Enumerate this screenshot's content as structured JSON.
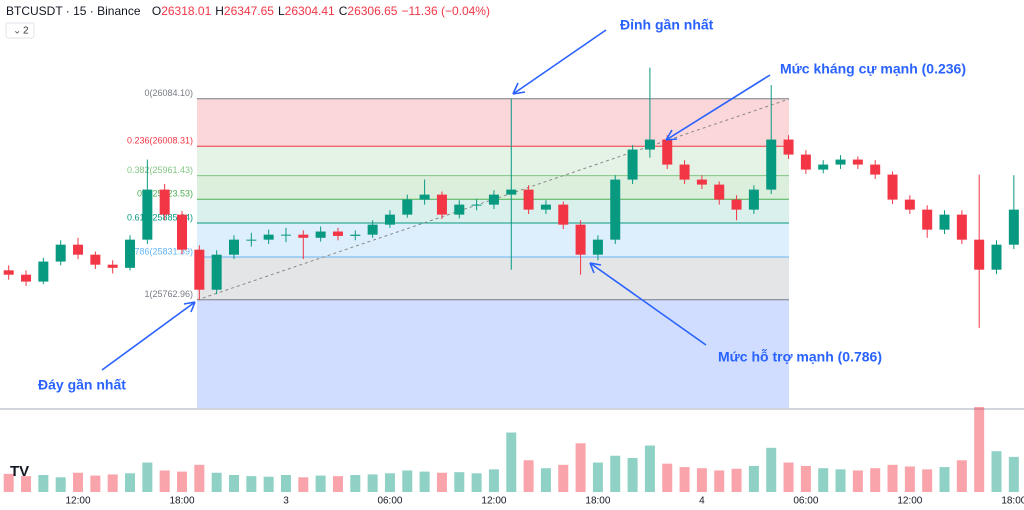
{
  "chart_data": {
    "type": "candlestick",
    "header": {
      "symbol": "BTCUSDT · 15 · Binance",
      "ohlc": [
        {
          "k": "O",
          "v": "26318.01"
        },
        {
          "k": "H",
          "v": "26347.65"
        },
        {
          "k": "L",
          "v": "26304.41"
        },
        {
          "k": "C",
          "v": "26306.65"
        }
      ],
      "change": "−11.36 (−0.04%)",
      "toggle": "2"
    },
    "categories": [
      null,
      null,
      null,
      null,
      "12:00",
      null,
      null,
      null,
      null,
      null,
      "18:00",
      null,
      null,
      null,
      null,
      null,
      "3",
      null,
      null,
      null,
      null,
      null,
      "06:00",
      null,
      null,
      null,
      null,
      null,
      "12:00",
      null,
      null,
      null,
      null,
      null,
      "18:00",
      null,
      null,
      null,
      null,
      null,
      "4",
      null,
      null,
      null,
      null,
      null,
      "06:00",
      null,
      null,
      null,
      null,
      null,
      "12:00",
      null,
      null,
      null,
      null,
      null,
      "18:00"
    ],
    "open": [
      25810,
      25803,
      25792,
      25824,
      25851,
      25835,
      25819,
      25814,
      25859,
      25939,
      25899,
      25843,
      25779,
      25835,
      25859,
      25859,
      25867,
      25867,
      25862,
      25872,
      25865,
      25867,
      25883,
      25899,
      25923,
      25931,
      25899,
      25915,
      25915,
      25931,
      25939,
      25907,
      25915,
      25883,
      25835,
      25859,
      25955,
      26003,
      26019,
      25979,
      25955,
      25947,
      25923,
      25907,
      25939,
      26019,
      25995,
      25971,
      25979,
      25987,
      25979,
      25963,
      25923,
      25907,
      25875,
      25899,
      25859,
      25811,
      25851
    ],
    "high": [
      25818,
      25810,
      25830,
      25858,
      25862,
      25840,
      25826,
      25866,
      25987,
      25948,
      25905,
      25850,
      25842,
      25866,
      25870,
      25875,
      25878,
      25874,
      25880,
      25878,
      25874,
      25890,
      25906,
      25931,
      25955,
      25936,
      25922,
      25924,
      25938,
      26084,
      25946,
      25922,
      25920,
      25890,
      25866,
      25962,
      26010,
      26134,
      26026,
      25986,
      25962,
      25952,
      25930,
      25946,
      26106,
      26026,
      26002,
      25986,
      25994,
      25992,
      25986,
      25968,
      25930,
      25914,
      25906,
      25906,
      25963,
      25858,
      25962
    ],
    "low": [
      25795,
      25785,
      25788,
      25818,
      25828,
      25812,
      25805,
      25810,
      25852,
      25890,
      25836,
      25763,
      25772,
      25828,
      25848,
      25852,
      25855,
      25828,
      25856,
      25858,
      25858,
      25862,
      25878,
      25894,
      25915,
      25892,
      25893,
      25906,
      25908,
      25811,
      25900,
      25900,
      25876,
      25803,
      25826,
      25852,
      25948,
      25990,
      25972,
      25948,
      25940,
      25915,
      25890,
      25900,
      25932,
      25988,
      25964,
      25965,
      25972,
      25972,
      25956,
      25916,
      25900,
      25862,
      25868,
      25852,
      25718,
      25804,
      25844
    ],
    "close": [
      25803,
      25792,
      25824,
      25851,
      25835,
      25819,
      25814,
      25859,
      25939,
      25899,
      25843,
      25779,
      25835,
      25859,
      25859,
      25867,
      25867,
      25862,
      25872,
      25865,
      25867,
      25883,
      25899,
      25923,
      25931,
      25899,
      25915,
      25915,
      25931,
      25939,
      25907,
      25915,
      25883,
      25835,
      25859,
      25955,
      26003,
      26019,
      25979,
      25955,
      25947,
      25923,
      25907,
      25939,
      26019,
      25995,
      25971,
      25979,
      25987,
      25979,
      25963,
      25923,
      25907,
      25875,
      25899,
      25859,
      25811,
      25851,
      25907
    ],
    "volume": [
      320,
      280,
      300,
      260,
      340,
      290,
      310,
      330,
      520,
      380,
      360,
      480,
      340,
      300,
      280,
      270,
      300,
      260,
      290,
      280,
      300,
      310,
      330,
      380,
      360,
      340,
      350,
      330,
      400,
      1050,
      560,
      420,
      480,
      860,
      520,
      640,
      600,
      820,
      500,
      440,
      420,
      380,
      410,
      460,
      780,
      520,
      460,
      420,
      400,
      380,
      420,
      480,
      450,
      400,
      440,
      560,
      1500,
      720,
      620
    ],
    "up_color": "#089981",
    "down_color": "#f23645",
    "ylim": [
      25590,
      26242
    ],
    "fib": [
      {
        "value": 26084.1,
        "label": "0(26084.10)",
        "color": "#787b86",
        "fill": "rgba(242,54,69,0.2)"
      },
      {
        "value": 26008.31,
        "label": "0.236(26008.31)",
        "color": "#f23645",
        "fill": "rgba(76,175,80,0.15)"
      },
      {
        "value": 25961.43,
        "label": "0.382(25961.43)",
        "color": "#81c784",
        "fill": "rgba(76,175,80,0.2)"
      },
      {
        "value": 25923.53,
        "label": "0.5(25923.53)",
        "color": "#4caf50",
        "fill": "rgba(8,153,129,0.15)"
      },
      {
        "value": 25885.64,
        "label": "0.618(25885.64)",
        "color": "#089981",
        "fill": "rgba(100,181,246,0.22)"
      },
      {
        "value": 25831.39,
        "label": "0.786(25831.39)",
        "color": "#64b5f6",
        "fill": "rgba(120,123,134,0.2)"
      },
      {
        "value": 25762.96,
        "label": "1(25762.96)",
        "color": "#787b86",
        "fill": "rgba(41,98,255,0.22)"
      }
    ],
    "annotations": [
      "Đỉnh gần nhất",
      "Mức kháng cự mạnh (0.236)",
      "Mức hỗ trợ mạnh (0.786)",
      "Đáy gần nhất"
    ]
  }
}
